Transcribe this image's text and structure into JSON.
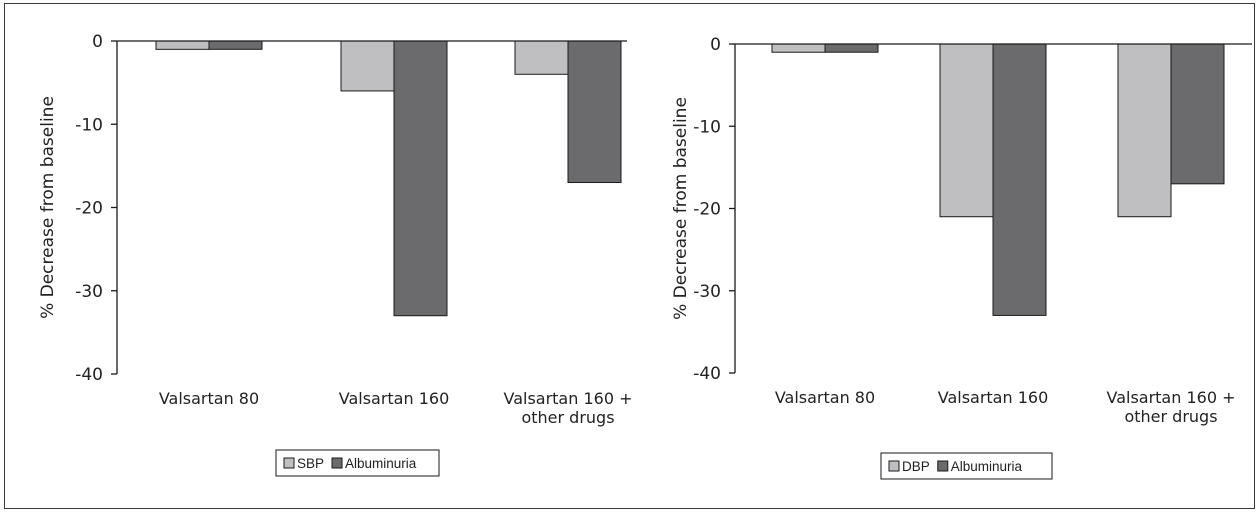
{
  "chart_data": [
    {
      "type": "bar",
      "categories": [
        [
          "Valsartan 80"
        ],
        [
          "Valsartan 160"
        ],
        [
          "Valsartan 160 +",
          "other drugs"
        ]
      ],
      "series": [
        {
          "name": "SBP",
          "values": [
            -1,
            -6,
            -4
          ],
          "color": "#bfbfc1"
        },
        {
          "name": "Albuminuria",
          "values": [
            -1,
            -33,
            -17
          ],
          "color": "#6b6b6e"
        }
      ],
      "ylabel": "% Decrease from baseline",
      "ylim": [
        -40,
        0
      ],
      "yticks": [
        0,
        -10,
        -20,
        -30,
        -40
      ],
      "grid": false,
      "legend": "bottom-center"
    },
    {
      "type": "bar",
      "categories": [
        [
          "Valsartan 80"
        ],
        [
          "Valsartan 160"
        ],
        [
          "Valsartan 160 +",
          "other drugs"
        ]
      ],
      "series": [
        {
          "name": "DBP",
          "values": [
            -1,
            -21,
            -21
          ],
          "color": "#bfbfc1"
        },
        {
          "name": "Albuminuria",
          "values": [
            -1,
            -33,
            -17
          ],
          "color": "#6b6b6e"
        }
      ],
      "ylabel": "% Decrease from baseline",
      "ylim": [
        -40,
        0
      ],
      "yticks": [
        0,
        -10,
        -20,
        -30,
        -40
      ],
      "grid": false,
      "legend": "bottom-center"
    }
  ]
}
